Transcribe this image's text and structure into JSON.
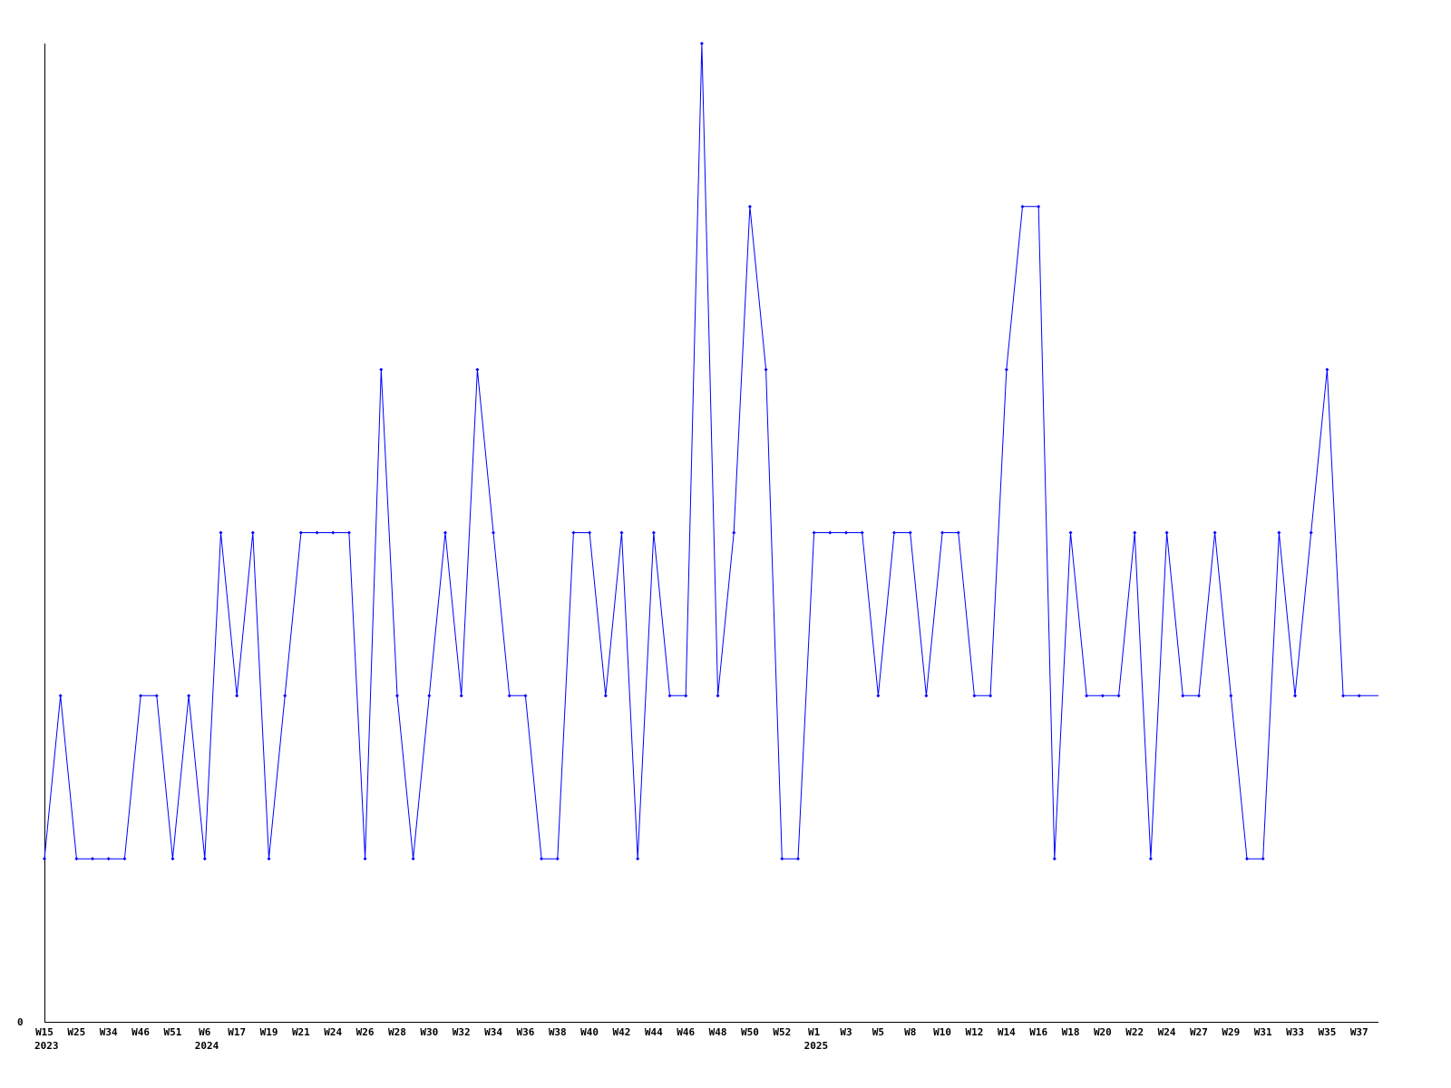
{
  "chart_data": {
    "type": "line",
    "title": "",
    "xlabel": "",
    "ylabel": "",
    "y_tick_labels": [
      "0"
    ],
    "ylim": [
      0,
      6
    ],
    "grid": false,
    "line_color": "#0000ff",
    "axis_color": "#000000",
    "x_tick_labels": [
      "W15",
      "W25",
      "W34",
      "W46",
      "W51",
      "W6",
      "W17",
      "W19",
      "W21",
      "W24",
      "W26",
      "W28",
      "W30",
      "W32",
      "W34",
      "W36",
      "W38",
      "W40",
      "W42",
      "W44",
      "W46",
      "W48",
      "W50",
      "W52",
      "W1",
      "W3",
      "W5",
      "W8",
      "W10",
      "W12",
      "W14",
      "W16",
      "W18",
      "W20",
      "W22",
      "W24",
      "W27",
      "W29",
      "W31",
      "W33",
      "W35",
      "W37"
    ],
    "year_labels": [
      {
        "label": "2023",
        "at_tick": 0
      },
      {
        "label": "2024",
        "at_tick": 5
      },
      {
        "label": "2025",
        "at_tick": 24
      }
    ],
    "values": [
      1,
      2,
      1,
      1,
      1,
      1,
      2,
      2,
      1,
      2,
      1,
      3,
      2,
      3,
      1,
      2,
      3,
      3,
      3,
      3,
      1,
      4,
      2,
      1,
      2,
      3,
      2,
      4,
      3,
      2,
      2,
      1,
      1,
      3,
      3,
      2,
      3,
      1,
      3,
      2,
      2,
      6,
      2,
      3,
      5,
      4,
      1,
      1,
      3,
      3,
      3,
      3,
      2,
      3,
      3,
      2,
      3,
      3,
      2,
      2,
      4,
      5,
      5,
      1,
      3,
      2,
      2,
      2,
      3,
      1,
      3,
      2,
      2,
      3,
      2,
      1,
      1,
      3,
      2,
      3,
      4,
      2,
      2
    ]
  }
}
